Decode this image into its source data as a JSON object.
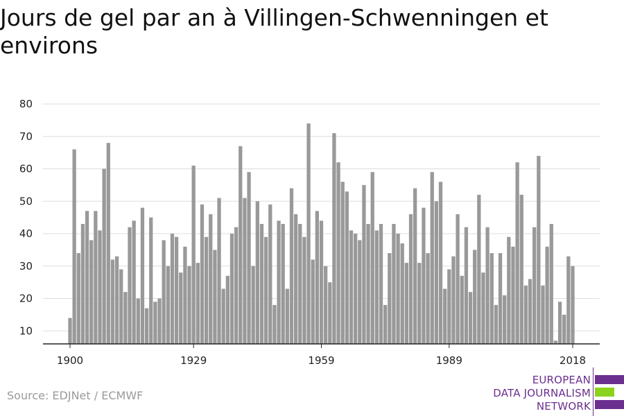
{
  "title": "Jours de gel par an à Villingen-Schwenningen et environs",
  "source": "Source: EDJNet / ECMWF",
  "logo": {
    "lines": [
      "EUROPEAN",
      "DATA JOURNALISM",
      "NETWORK"
    ],
    "colors": {
      "purple": "#6b2f8f",
      "green": "#8cd31f"
    }
  },
  "chart_data": {
    "type": "bar",
    "title": "Jours de gel par an à Villingen-Schwenningen et environs",
    "xlabel": "",
    "ylabel": "",
    "x_start": 1900,
    "x_end": 2018,
    "x_ticks": [
      1900,
      1929,
      1959,
      1989,
      2018
    ],
    "y_ticks": [
      10,
      20,
      30,
      40,
      50,
      60,
      70,
      80
    ],
    "ylim": [
      6,
      80
    ],
    "grid": true,
    "bar_color": "#999999",
    "values": [
      14,
      66,
      34,
      43,
      47,
      38,
      47,
      41,
      60,
      68,
      32,
      33,
      29,
      22,
      42,
      44,
      20,
      48,
      17,
      45,
      19,
      20,
      38,
      30,
      40,
      39,
      28,
      36,
      30,
      61,
      31,
      49,
      39,
      46,
      35,
      51,
      23,
      27,
      40,
      42,
      67,
      51,
      59,
      30,
      50,
      43,
      39,
      49,
      18,
      44,
      43,
      23,
      54,
      46,
      43,
      39,
      74,
      32,
      47,
      44,
      30,
      25,
      71,
      62,
      56,
      53,
      41,
      40,
      38,
      55,
      43,
      59,
      41,
      43,
      18,
      34,
      43,
      40,
      37,
      31,
      46,
      54,
      31,
      48,
      34,
      59,
      50,
      56,
      23,
      29,
      33,
      46,
      27,
      42,
      22,
      35,
      52,
      28,
      42,
      34,
      18,
      34,
      21,
      39,
      36,
      62,
      52,
      24,
      26,
      42,
      64,
      24,
      36,
      43,
      7,
      19,
      15,
      33,
      30
    ]
  }
}
